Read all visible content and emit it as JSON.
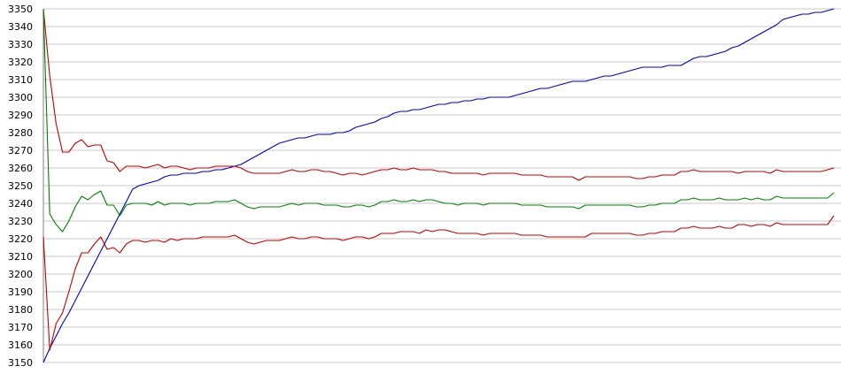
{
  "chart_data": {
    "type": "line",
    "title": "",
    "xlabel": "",
    "ylabel": "",
    "ylim": [
      3150,
      3350
    ],
    "y_ticks": [
      3150,
      3160,
      3170,
      3180,
      3190,
      3200,
      3210,
      3220,
      3230,
      3240,
      3250,
      3260,
      3270,
      3280,
      3290,
      3300,
      3310,
      3320,
      3330,
      3340,
      3350
    ],
    "grid": true,
    "legend": "none",
    "colors": {
      "grid": "#c8c8c8",
      "axis": "#808080",
      "blue": "#0000c0",
      "upper_red": "#c00000",
      "green": "#008000",
      "lower_red": "#c00000"
    },
    "series": [
      {
        "color_key": "blue",
        "values": [
          3150,
          3158,
          3165,
          3172,
          3178,
          3185,
          3192,
          3199,
          3206,
          3213,
          3220,
          3227,
          3234,
          3241,
          3248,
          3250,
          3251,
          3252,
          3253,
          3255,
          3256,
          3256,
          3257,
          3257,
          3257,
          3258,
          3258,
          3259,
          3259,
          3260,
          3261,
          3262,
          3264,
          3266,
          3268,
          3270,
          3272,
          3274,
          3275,
          3276,
          3277,
          3277,
          3278,
          3279,
          3279,
          3279,
          3280,
          3280,
          3281,
          3283,
          3284,
          3285,
          3286,
          3288,
          3289,
          3291,
          3292,
          3292,
          3293,
          3293,
          3294,
          3295,
          3296,
          3296,
          3297,
          3297,
          3298,
          3298,
          3299,
          3299,
          3300,
          3300,
          3300,
          3300,
          3301,
          3302,
          3303,
          3304,
          3305,
          3305,
          3306,
          3307,
          3308,
          3309,
          3309,
          3309,
          3310,
          3311,
          3312,
          3312,
          3313,
          3314,
          3315,
          3316,
          3317,
          3317,
          3317,
          3317,
          3318,
          3318,
          3318,
          3320,
          3322,
          3323,
          3323,
          3324,
          3325,
          3326,
          3328,
          3329,
          3331,
          3333,
          3335,
          3337,
          3339,
          3341,
          3344,
          3345,
          3346,
          3347,
          3347,
          3348,
          3348,
          3349,
          3350
        ]
      },
      {
        "color_key": "upper_red",
        "values": [
          3350,
          3312,
          3285,
          3269,
          3269,
          3274,
          3276,
          3272,
          3273,
          3273,
          3264,
          3263,
          3258,
          3261,
          3261,
          3261,
          3260,
          3261,
          3262,
          3260,
          3261,
          3261,
          3260,
          3259,
          3260,
          3260,
          3260,
          3261,
          3261,
          3261,
          3261,
          3260,
          3258,
          3257,
          3257,
          3257,
          3257,
          3257,
          3258,
          3259,
          3258,
          3258,
          3259,
          3259,
          3258,
          3258,
          3257,
          3256,
          3257,
          3257,
          3256,
          3257,
          3258,
          3259,
          3259,
          3260,
          3259,
          3259,
          3260,
          3259,
          3259,
          3259,
          3258,
          3258,
          3257,
          3257,
          3257,
          3257,
          3257,
          3256,
          3257,
          3257,
          3257,
          3257,
          3257,
          3256,
          3256,
          3256,
          3256,
          3255,
          3255,
          3255,
          3255,
          3255,
          3253,
          3255,
          3255,
          3255,
          3255,
          3255,
          3255,
          3255,
          3255,
          3254,
          3254,
          3255,
          3255,
          3256,
          3256,
          3256,
          3258,
          3258,
          3259,
          3258,
          3258,
          3258,
          3258,
          3258,
          3258,
          3257,
          3258,
          3258,
          3258,
          3258,
          3257,
          3259,
          3258,
          3258,
          3258,
          3258,
          3258,
          3258,
          3258,
          3259,
          3260
        ]
      },
      {
        "color_key": "green",
        "values": [
          3350,
          3234,
          3228,
          3224,
          3230,
          3238,
          3244,
          3242,
          3245,
          3247,
          3239,
          3239,
          3233,
          3239,
          3240,
          3240,
          3240,
          3239,
          3241,
          3239,
          3240,
          3240,
          3240,
          3239,
          3240,
          3240,
          3240,
          3241,
          3241,
          3241,
          3242,
          3240,
          3238,
          3237,
          3238,
          3238,
          3238,
          3238,
          3239,
          3240,
          3239,
          3240,
          3240,
          3240,
          3239,
          3239,
          3239,
          3238,
          3238,
          3239,
          3239,
          3238,
          3239,
          3241,
          3241,
          3242,
          3241,
          3241,
          3242,
          3241,
          3242,
          3242,
          3241,
          3240,
          3240,
          3239,
          3240,
          3240,
          3240,
          3239,
          3240,
          3240,
          3240,
          3240,
          3240,
          3239,
          3239,
          3239,
          3239,
          3238,
          3238,
          3238,
          3238,
          3238,
          3237,
          3239,
          3239,
          3239,
          3239,
          3239,
          3239,
          3239,
          3239,
          3238,
          3238,
          3239,
          3239,
          3240,
          3240,
          3240,
          3242,
          3242,
          3243,
          3242,
          3242,
          3242,
          3243,
          3242,
          3242,
          3242,
          3243,
          3242,
          3243,
          3242,
          3242,
          3244,
          3243,
          3243,
          3243,
          3243,
          3243,
          3243,
          3243,
          3243,
          3246
        ]
      },
      {
        "color_key": "lower_red",
        "values": [
          3221,
          3157,
          3172,
          3178,
          3190,
          3203,
          3212,
          3212,
          3217,
          3221,
          3214,
          3215,
          3212,
          3217,
          3219,
          3219,
          3218,
          3219,
          3219,
          3218,
          3220,
          3219,
          3220,
          3220,
          3220,
          3221,
          3221,
          3221,
          3221,
          3221,
          3222,
          3220,
          3218,
          3217,
          3218,
          3219,
          3219,
          3219,
          3220,
          3221,
          3220,
          3220,
          3221,
          3221,
          3220,
          3220,
          3220,
          3219,
          3220,
          3221,
          3221,
          3220,
          3221,
          3223,
          3223,
          3223,
          3224,
          3224,
          3224,
          3223,
          3225,
          3224,
          3225,
          3225,
          3224,
          3223,
          3223,
          3223,
          3223,
          3222,
          3223,
          3223,
          3223,
          3223,
          3223,
          3222,
          3222,
          3222,
          3222,
          3221,
          3221,
          3221,
          3221,
          3221,
          3221,
          3221,
          3223,
          3223,
          3223,
          3223,
          3223,
          3223,
          3223,
          3222,
          3222,
          3223,
          3223,
          3224,
          3224,
          3224,
          3226,
          3226,
          3227,
          3226,
          3226,
          3226,
          3227,
          3226,
          3226,
          3228,
          3228,
          3227,
          3228,
          3228,
          3227,
          3229,
          3228,
          3228,
          3228,
          3228,
          3228,
          3228,
          3228,
          3228,
          3233
        ]
      }
    ]
  }
}
